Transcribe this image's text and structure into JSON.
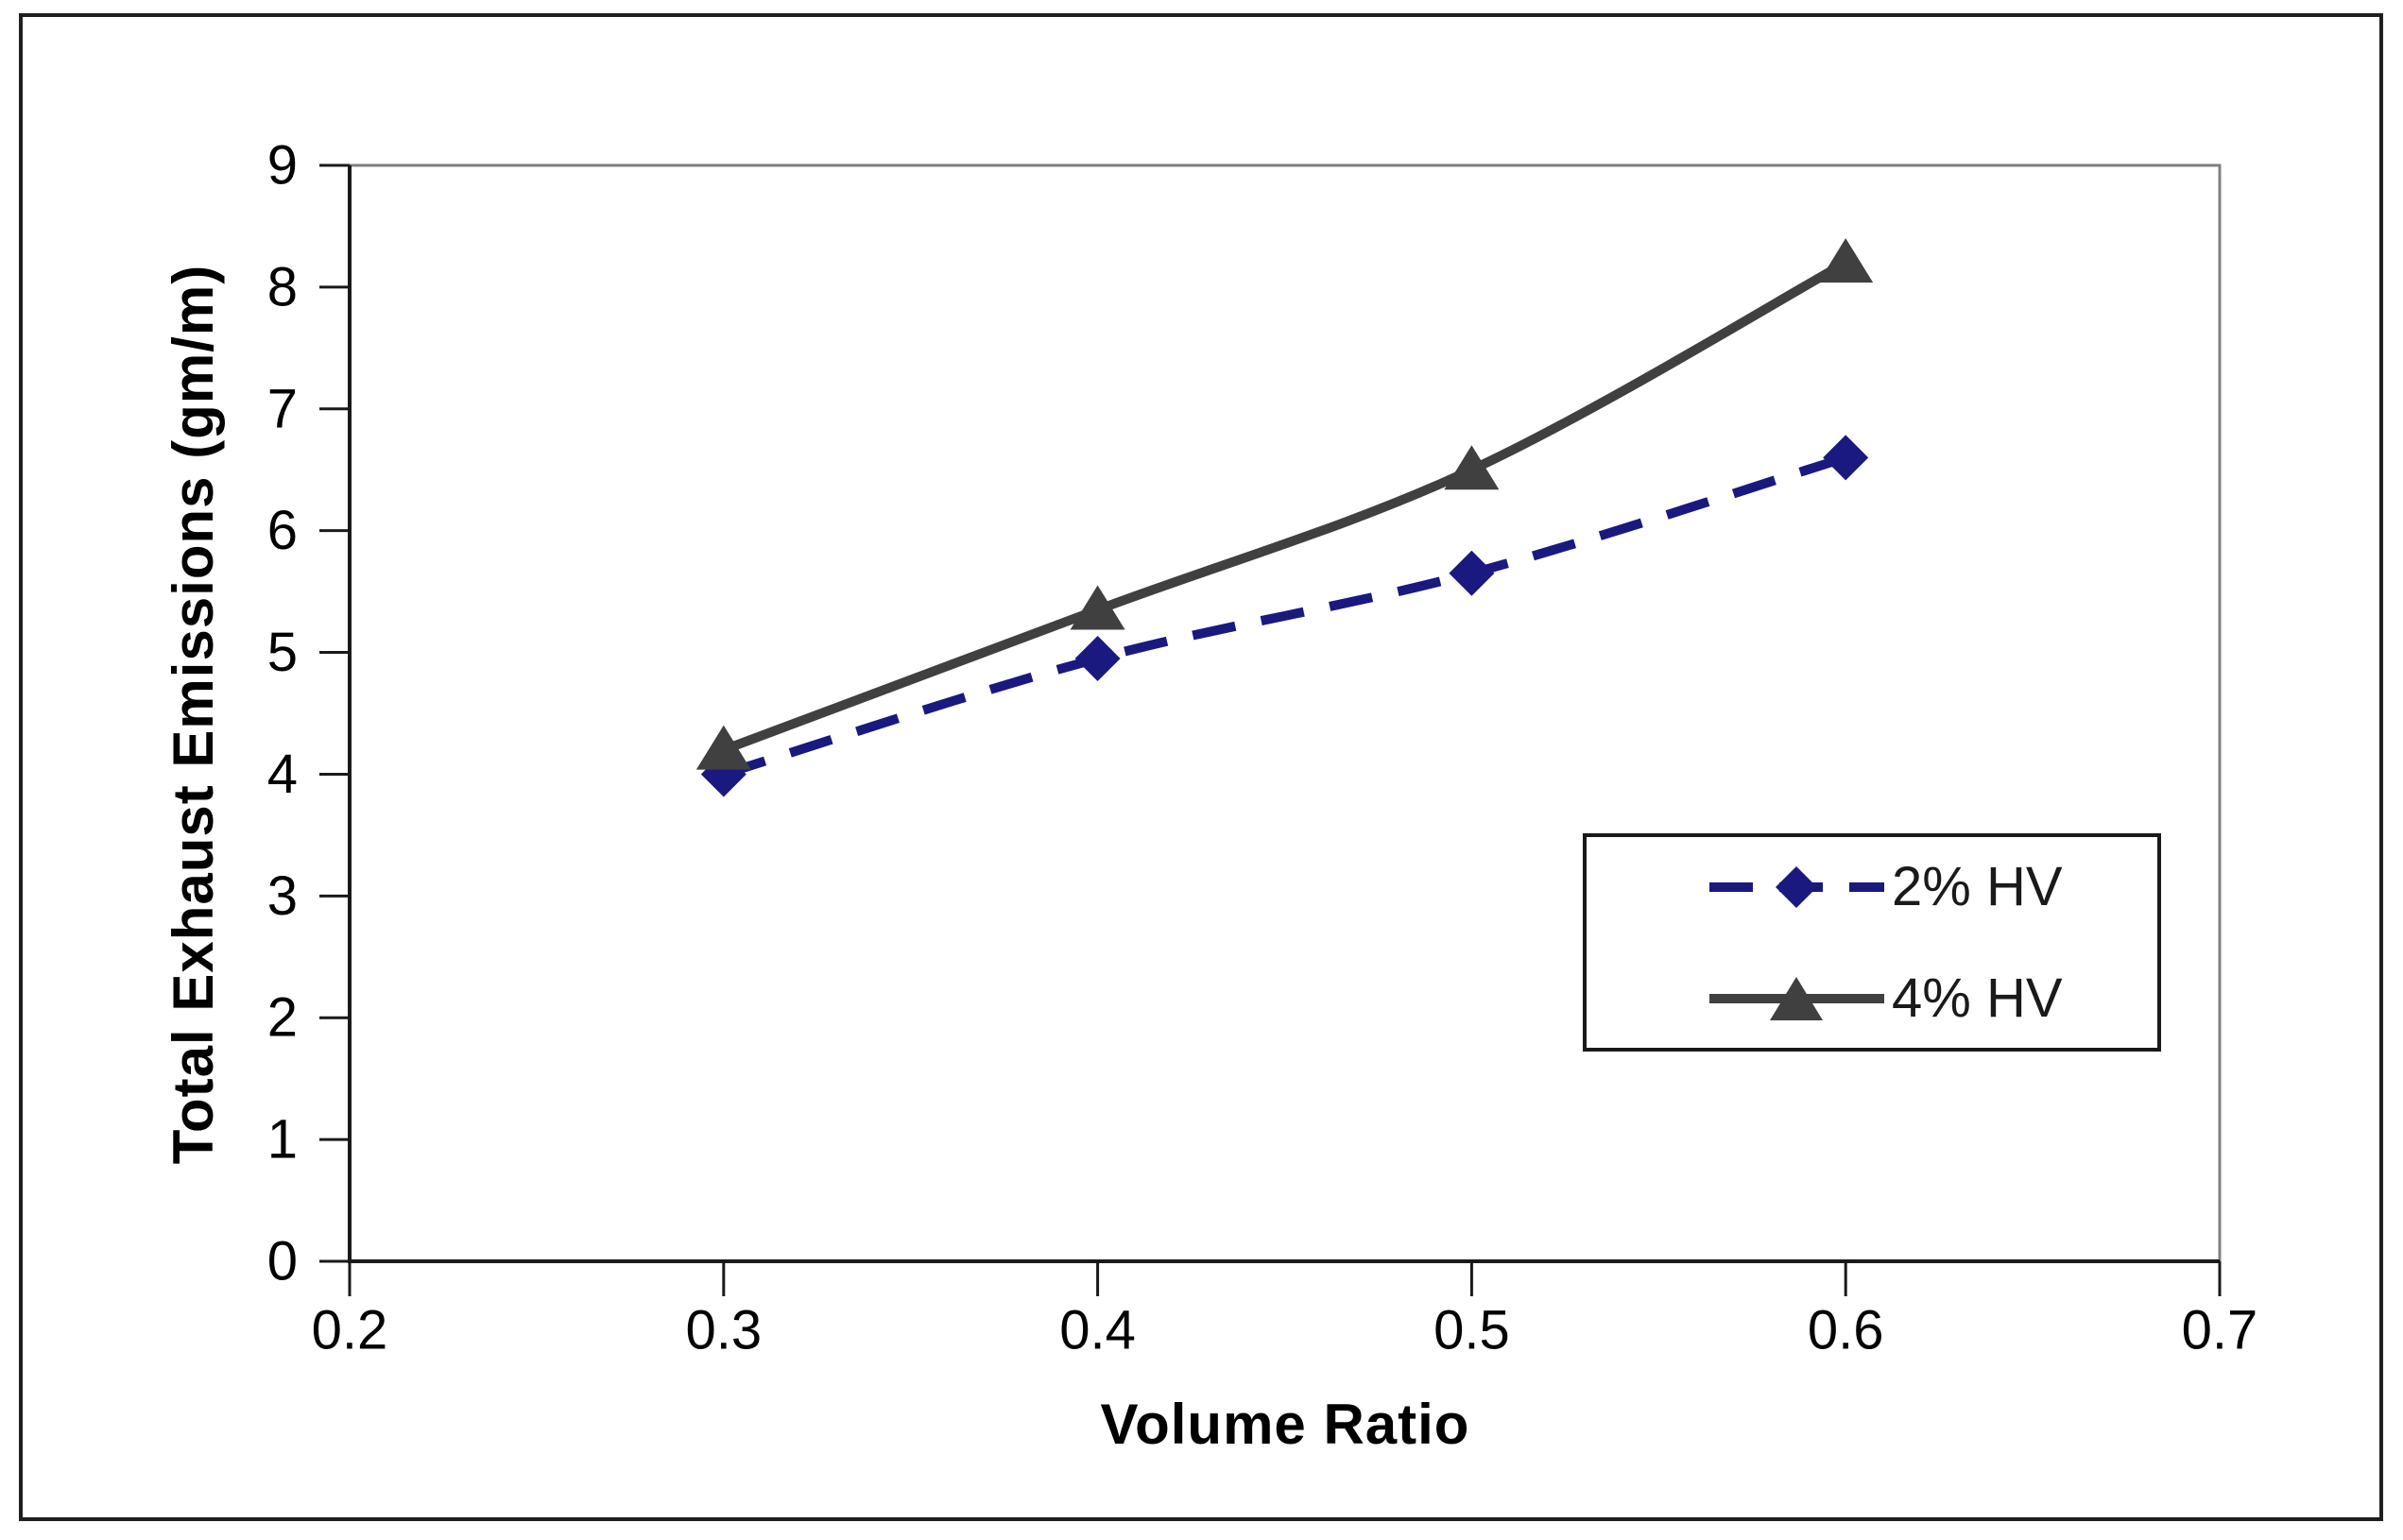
{
  "chart_data": {
    "type": "line",
    "title": "",
    "xlabel": "Volume Ratio",
    "ylabel": "Total Exhaust Emissions (gm/m)",
    "x": [
      0.3,
      0.4,
      0.5,
      0.6
    ],
    "series": [
      {
        "name": "2% HV",
        "values": [
          4.0,
          4.95,
          5.65,
          6.6
        ],
        "color": "#191980",
        "line_style": "dashed",
        "marker": "diamond"
      },
      {
        "name": "4% HV",
        "values": [
          4.2,
          5.35,
          6.5,
          8.2
        ],
        "color": "#404040",
        "line_style": "solid",
        "marker": "triangle"
      }
    ],
    "xlim": [
      0.2,
      0.7
    ],
    "ylim": [
      0,
      9
    ],
    "x_ticks": [
      "0.2",
      "0.3",
      "0.4",
      "0.5",
      "0.6",
      "0.7"
    ],
    "y_ticks": [
      "0",
      "1",
      "2",
      "3",
      "4",
      "5",
      "6",
      "7",
      "8",
      "9"
    ],
    "grid": "off",
    "legend_position": "inside-lower-right",
    "axis_color": "#1a1a1a",
    "plot_border_color": "#808080"
  }
}
